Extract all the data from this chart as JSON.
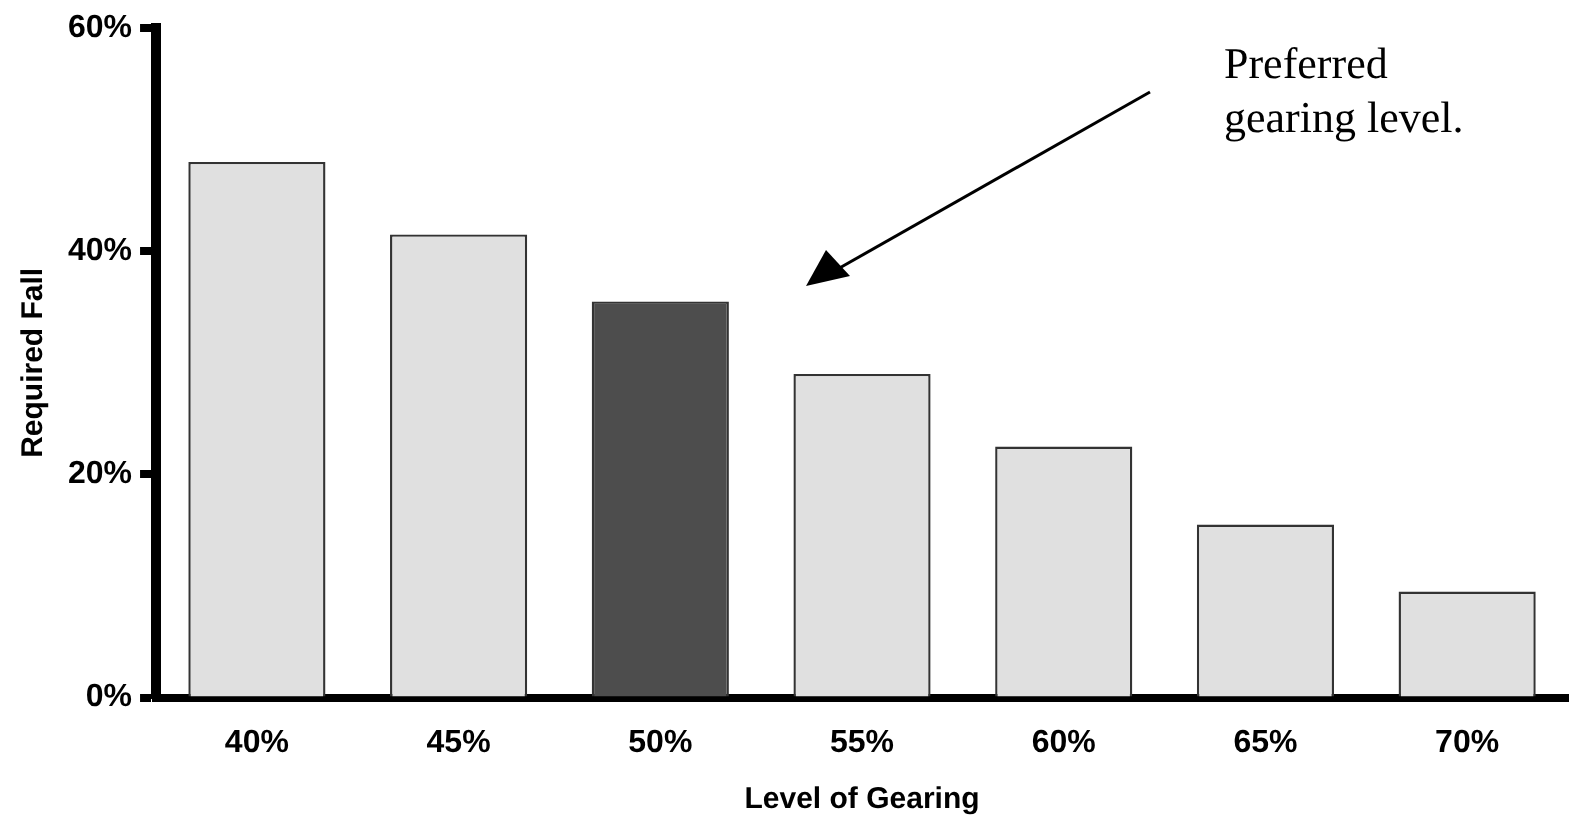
{
  "chart_data": {
    "type": "bar",
    "xlabel": "Level of Gearing",
    "ylabel": "Required Fall",
    "categories": [
      "40%",
      "45%",
      "50%",
      "55%",
      "60%",
      "65%",
      "70%"
    ],
    "values": [
      48,
      41.5,
      35.5,
      29,
      22.5,
      15.5,
      9.5
    ],
    "colors": [
      "#e0e0e0",
      "#e0e0e0",
      "#4d4d4d",
      "#e0e0e0",
      "#e0e0e0",
      "#e0e0e0",
      "#e0e0e0"
    ],
    "ylim": [
      0,
      60
    ],
    "yticks": [
      {
        "value": 0,
        "label": "0%"
      },
      {
        "value": 20,
        "label": "20%"
      },
      {
        "value": 40,
        "label": "40%"
      },
      {
        "value": 60,
        "label": "60%"
      }
    ],
    "grid": false,
    "legend": false,
    "annotations": [
      "Preferred\ngearing level."
    ]
  }
}
